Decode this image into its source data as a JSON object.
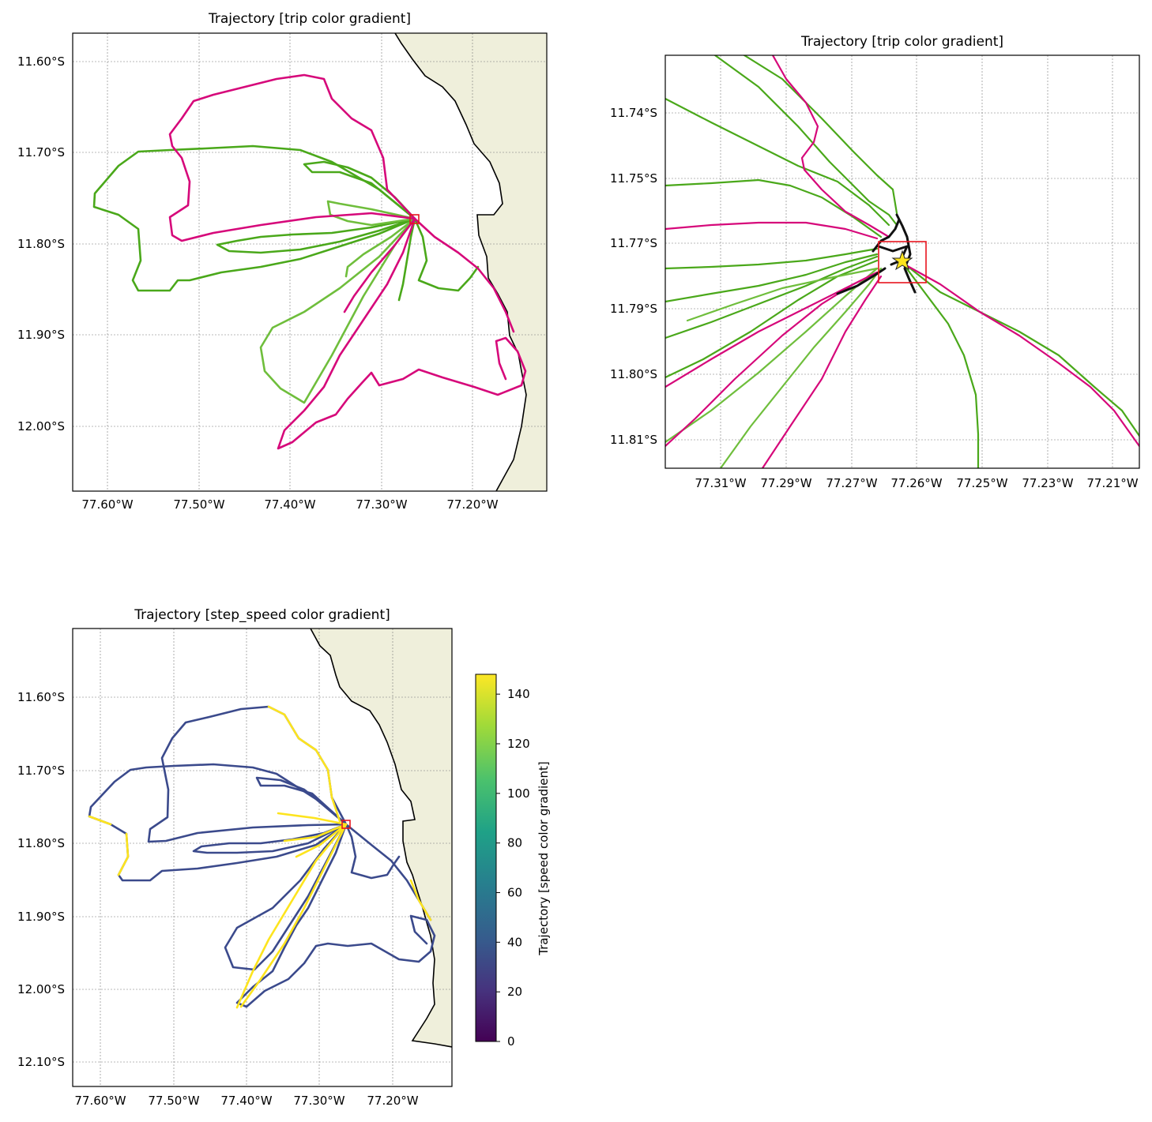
{
  "colors": {
    "trip_magenta": "#d6087a",
    "trip_green": "#4aa81a",
    "trip_light_green": "#6fbe3c",
    "land": "#efefdb",
    "zoom_box": "#e8141e",
    "speed_low": "#3b4a8c",
    "speed_high": "#fde41e"
  },
  "panels": [
    {
      "title": "Trajectory [trip color gradient]",
      "lat_ticks": [
        "11.60°S",
        "11.70°S",
        "11.80°S",
        "11.90°S",
        "12.00°S"
      ],
      "lon_ticks": [
        "77.60°W",
        "77.50°W",
        "77.40°W",
        "77.30°W",
        "77.20°W"
      ]
    },
    {
      "title": "Trajectory [trip color gradient]",
      "lat_ticks": [
        "11.74°S",
        "11.75°S",
        "11.77°S",
        "11.79°S",
        "11.80°S",
        "11.81°S"
      ],
      "lon_ticks": [
        "77.31°W",
        "77.29°W",
        "77.27°W",
        "77.26°W",
        "77.25°W",
        "77.23°W",
        "77.21°W"
      ]
    },
    {
      "title": "Trajectory [step_speed color gradient]",
      "lat_ticks": [
        "11.60°S",
        "11.70°S",
        "11.80°S",
        "11.90°S",
        "12.00°S",
        "12.10°S"
      ],
      "lon_ticks": [
        "77.60°W",
        "77.50°W",
        "77.40°W",
        "77.30°W",
        "77.20°W"
      ],
      "colorbar": {
        "label": "Trajectory [speed color gradient]",
        "ticks": [
          "0",
          "20",
          "40",
          "60",
          "80",
          "100",
          "120",
          "140"
        ],
        "min": 0,
        "max": 148,
        "colormap": "viridis"
      }
    }
  ]
}
